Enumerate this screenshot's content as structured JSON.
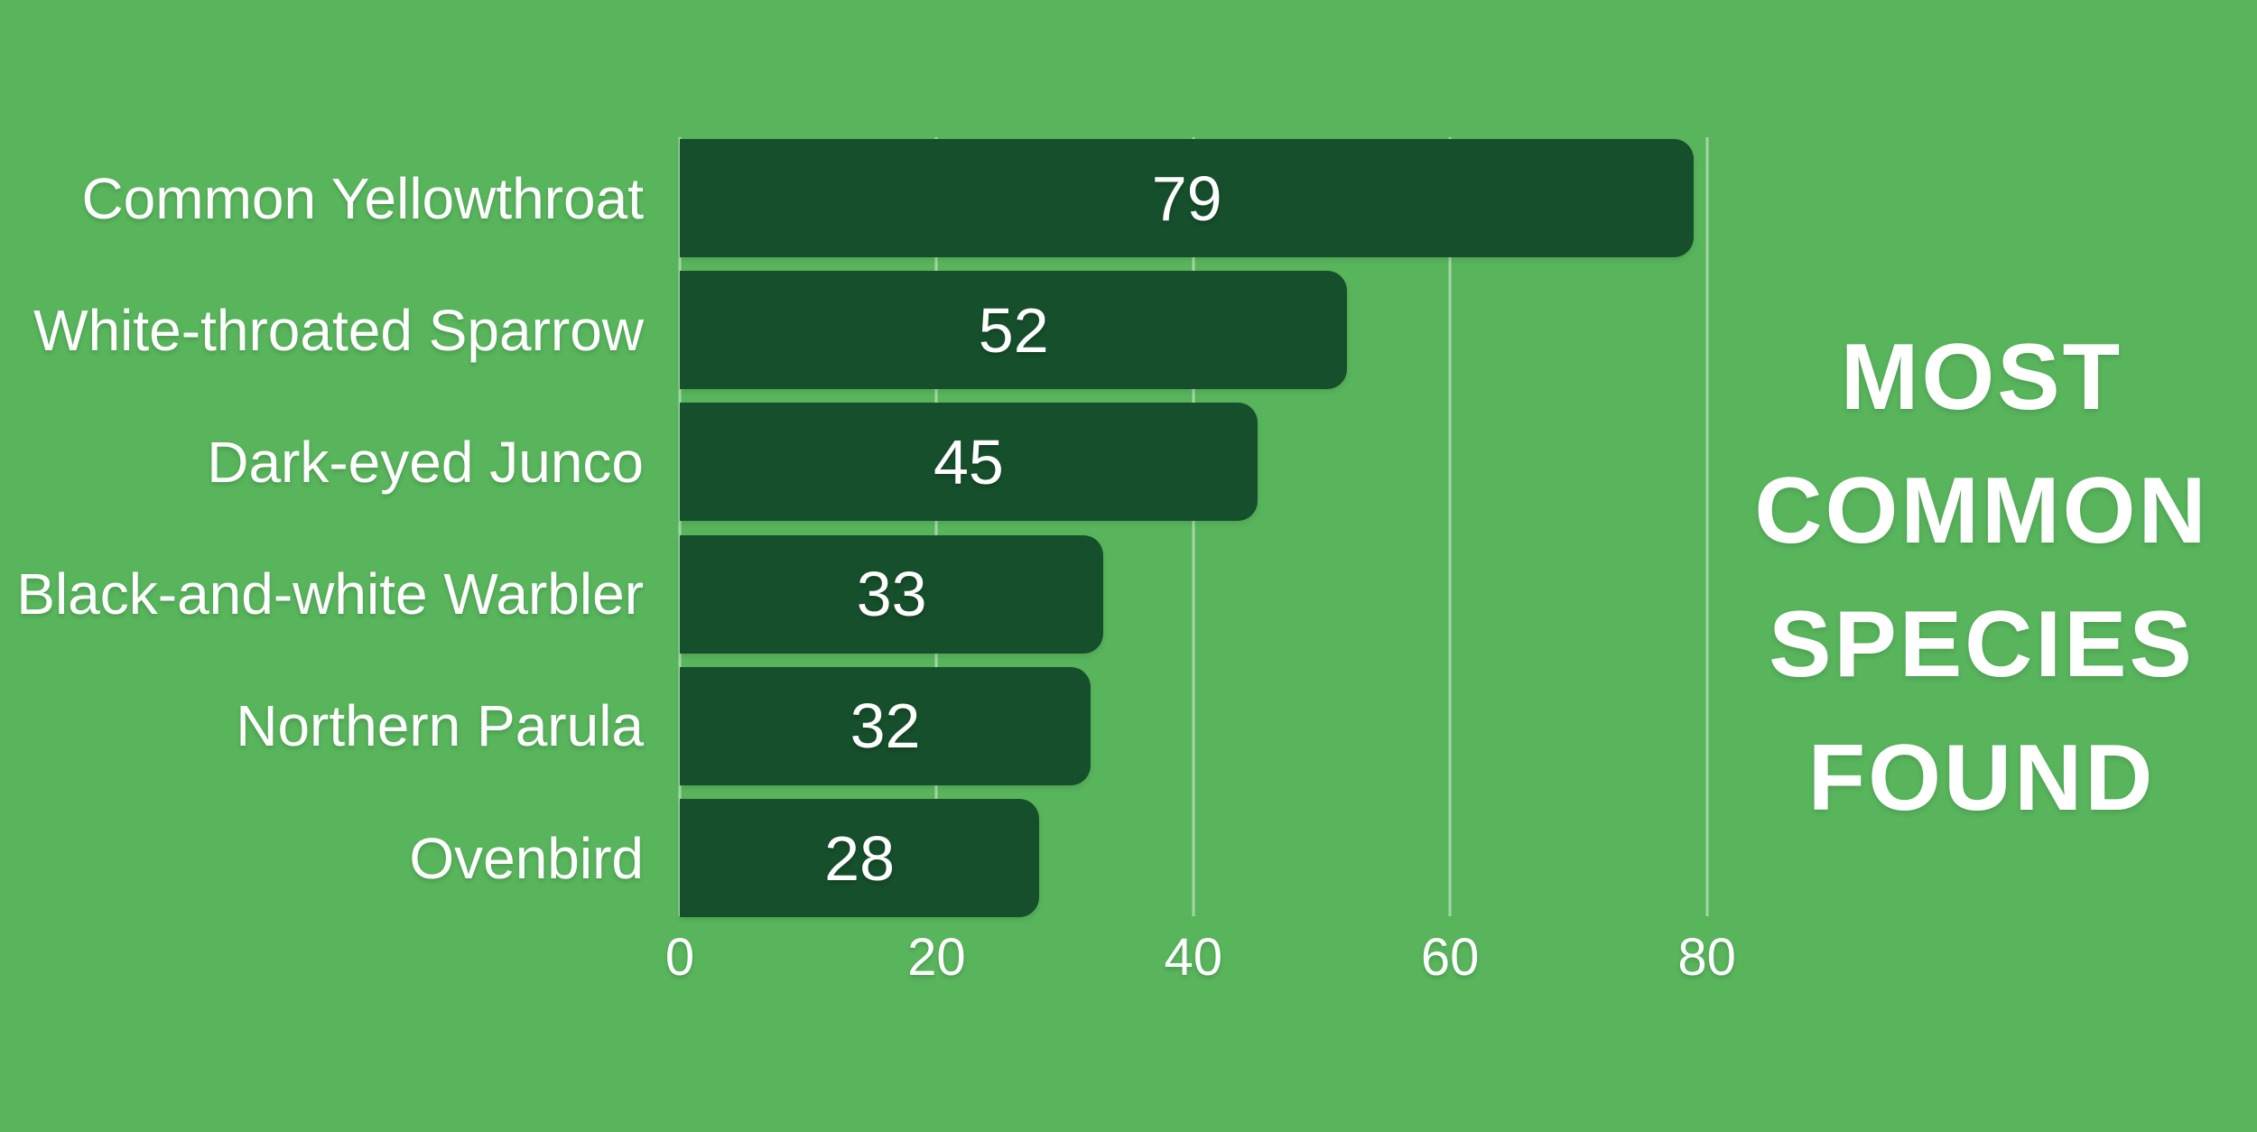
{
  "chart_data": {
    "type": "bar",
    "orientation": "horizontal",
    "title": "MOST COMMON SPECIES FOUND",
    "title_lines": [
      "MOST",
      "COMMON",
      "SPECIES",
      "FOUND"
    ],
    "categories": [
      "Common Yellowthroat",
      "White-throated Sparrow",
      "Dark-eyed Junco",
      "Black-and-white Warbler",
      "Northern Parula",
      "Ovenbird"
    ],
    "values": [
      79,
      52,
      45,
      33,
      32,
      28
    ],
    "xlabel": "",
    "ylabel": "",
    "xlim": [
      0,
      80
    ],
    "x_ticks": [
      0,
      20,
      40,
      60,
      80
    ],
    "x_tick_labels": [
      "0",
      "20",
      "40",
      "60",
      "80"
    ],
    "grid": "vertical-gridlines-on",
    "legend": "none",
    "value_labels": "centered-inside-bars",
    "colors": {
      "background": "#58b55c",
      "bar": "#164f2b",
      "text": "#ffffff",
      "gridline": "rgba(255,255,255,0.45)"
    }
  }
}
